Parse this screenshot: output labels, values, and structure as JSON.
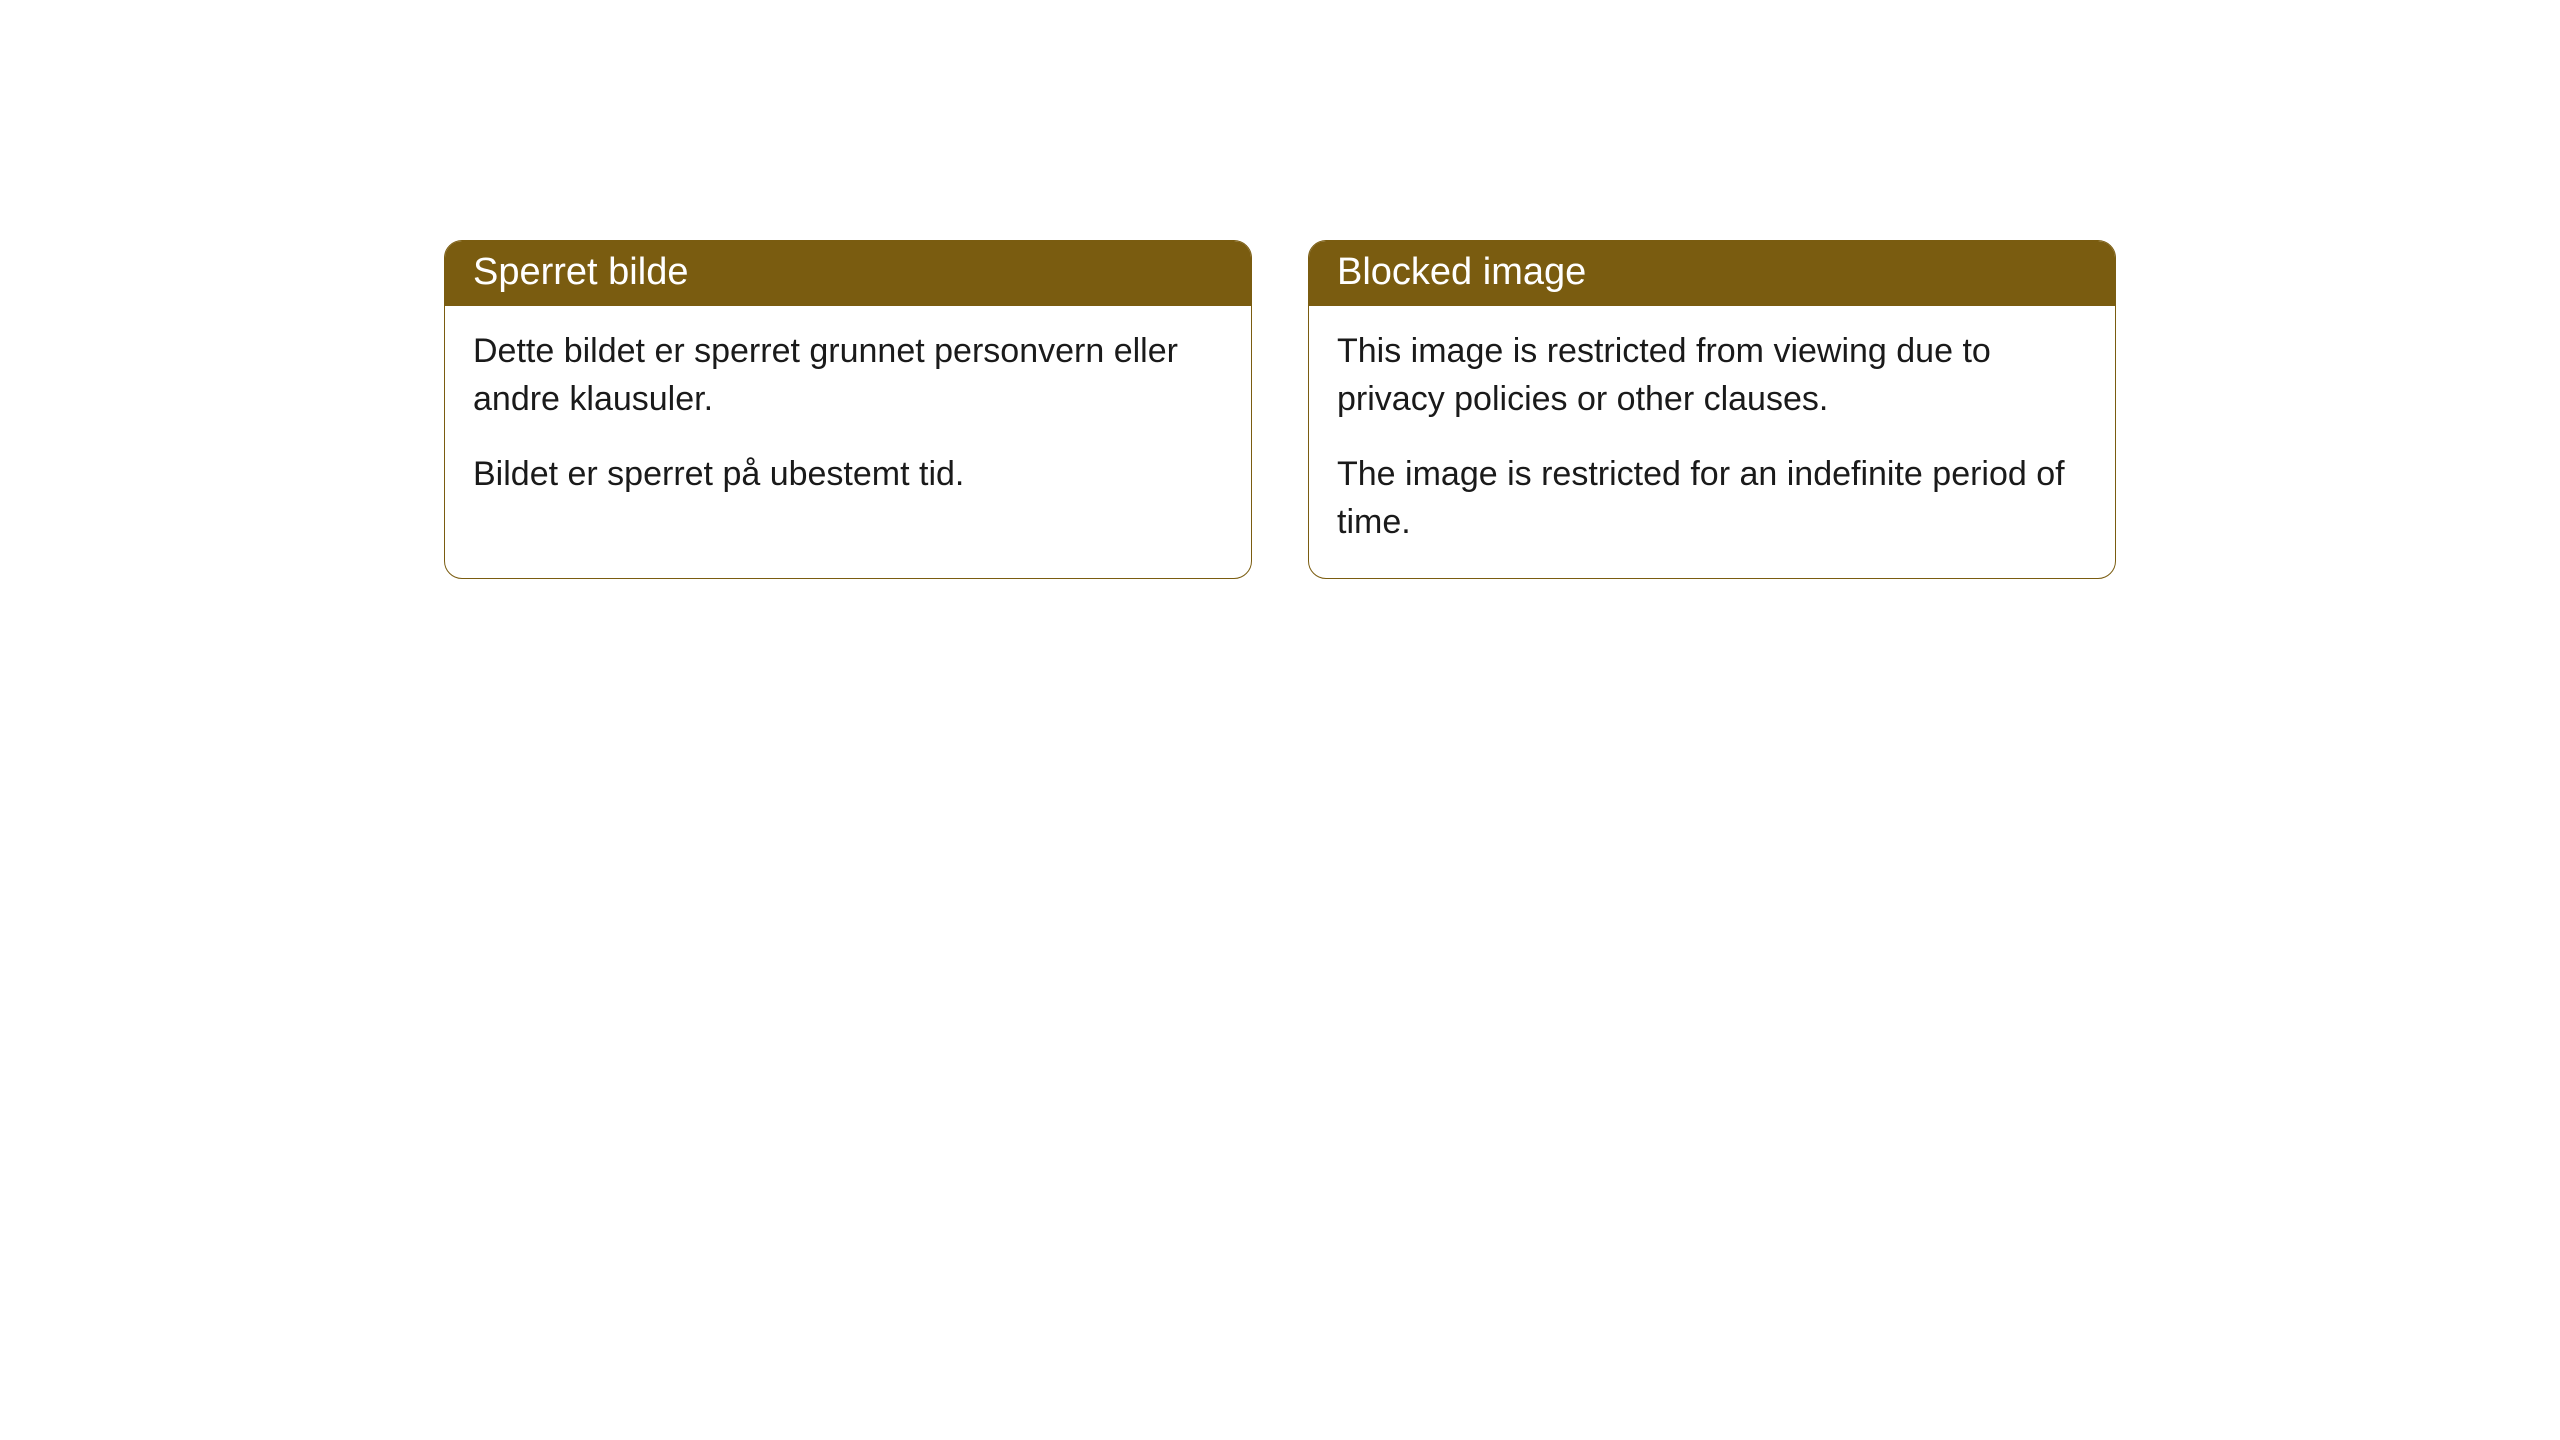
{
  "cards": [
    {
      "title": "Sperret bilde",
      "paragraph1": "Dette bildet er sperret grunnet personvern eller andre klausuler.",
      "paragraph2": "Bildet er sperret på ubestemt tid."
    },
    {
      "title": "Blocked image",
      "paragraph1": "This image is restricted from viewing due to privacy policies or other clauses.",
      "paragraph2": "The image is restricted for an indefinite period of time."
    }
  ],
  "style": {
    "header_background": "#7a5c10",
    "header_text_color": "#ffffff",
    "border_color": "#7a5c10",
    "body_text_color": "#1a1a1a",
    "background_color": "#ffffff",
    "border_radius": 18,
    "header_fontsize": 38,
    "body_fontsize": 34
  }
}
